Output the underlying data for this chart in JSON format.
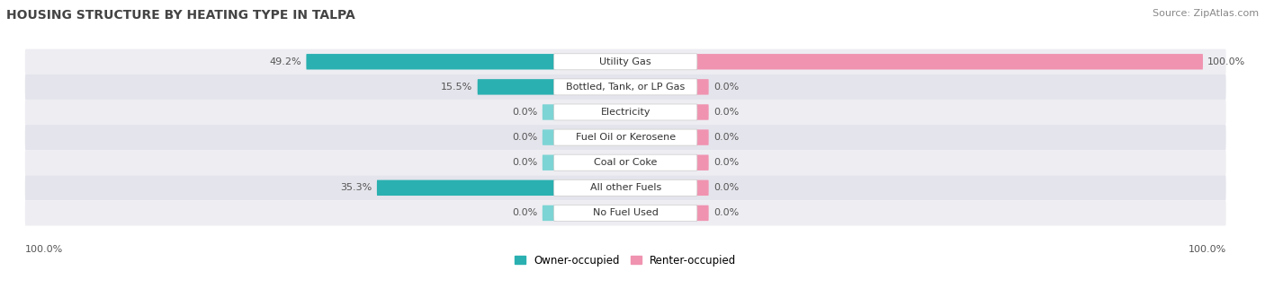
{
  "title": "HOUSING STRUCTURE BY HEATING TYPE IN TALPA",
  "source": "Source: ZipAtlas.com",
  "categories": [
    "Utility Gas",
    "Bottled, Tank, or LP Gas",
    "Electricity",
    "Fuel Oil or Kerosene",
    "Coal or Coke",
    "All other Fuels",
    "No Fuel Used"
  ],
  "owner_values": [
    49.2,
    15.5,
    0.0,
    0.0,
    0.0,
    35.3,
    0.0
  ],
  "renter_values": [
    100.0,
    0.0,
    0.0,
    0.0,
    0.0,
    0.0,
    0.0
  ],
  "owner_color_dark": "#2ab0b0",
  "owner_color_light": "#7dd4d4",
  "renter_color": "#f093b0",
  "owner_label": "Owner-occupied",
  "renter_label": "Renter-occupied",
  "bg_color": "#ffffff",
  "row_color_even": "#f0f0f5",
  "row_color_odd": "#e8e8f0",
  "title_fontsize": 10,
  "label_fontsize": 8,
  "value_fontsize": 8,
  "source_fontsize": 8,
  "legend_fontsize": 8.5
}
